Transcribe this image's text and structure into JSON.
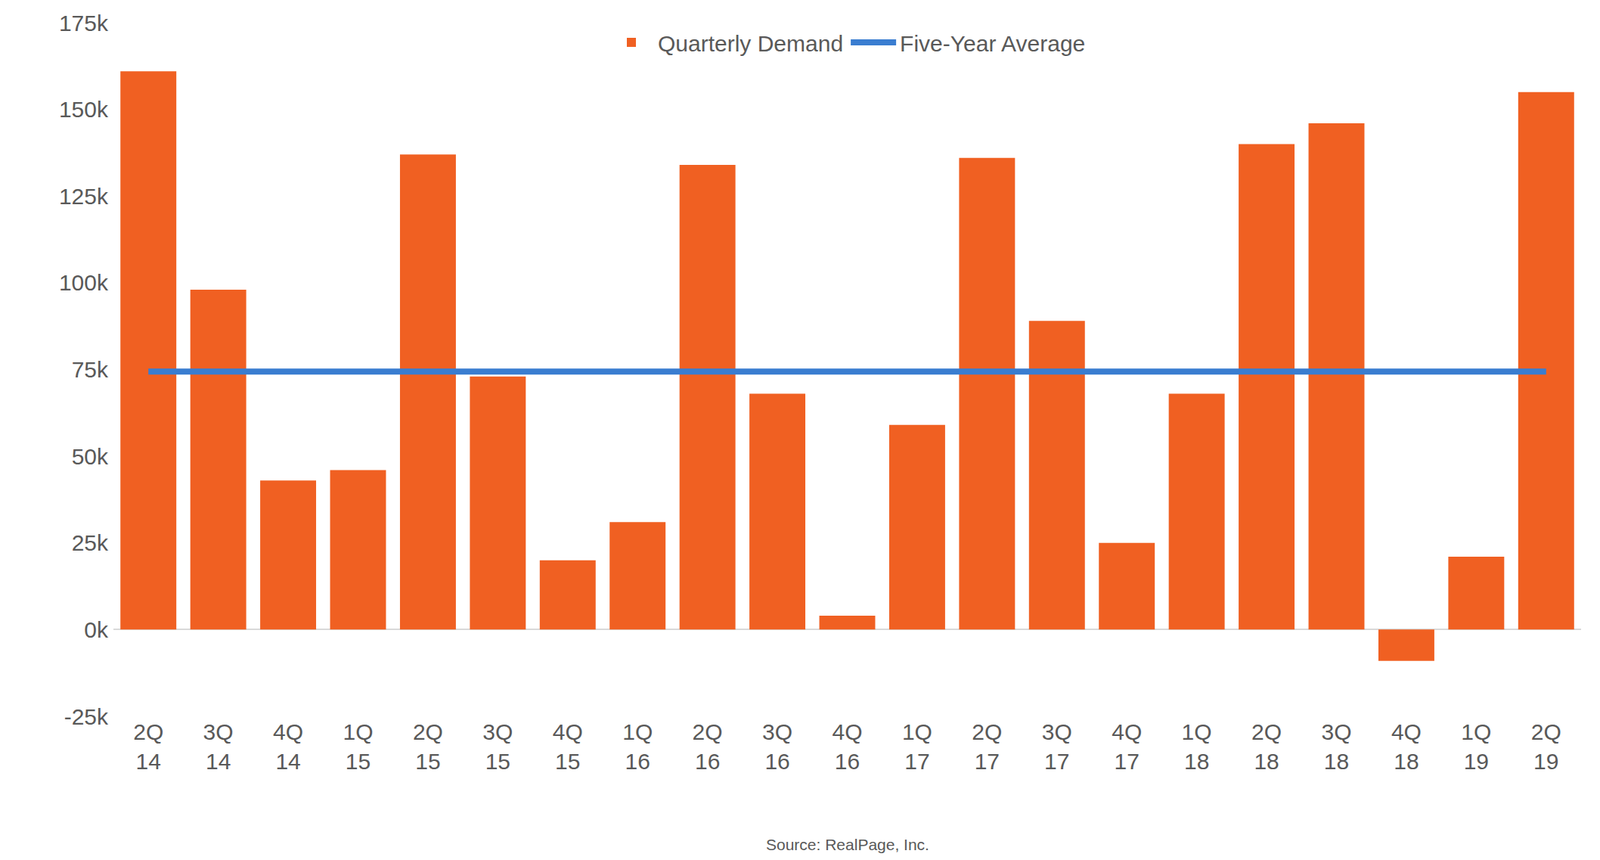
{
  "chart_data": {
    "type": "bar",
    "categories": [
      "2Q\n14",
      "3Q\n14",
      "4Q\n14",
      "1Q\n15",
      "2Q\n15",
      "3Q\n15",
      "4Q\n15",
      "1Q\n16",
      "2Q\n16",
      "3Q\n16",
      "4Q\n16",
      "1Q\n17",
      "2Q\n17",
      "3Q\n17",
      "4Q\n17",
      "1Q\n18",
      "2Q\n18",
      "3Q\n18",
      "4Q\n18",
      "1Q\n19",
      "2Q\n19"
    ],
    "series": [
      {
        "name": "Quarterly Demand",
        "type": "bar",
        "color": "#f06022",
        "values": [
          161000,
          98000,
          43000,
          46000,
          137000,
          73000,
          20000,
          31000,
          134000,
          68000,
          4000,
          59000,
          136000,
          89000,
          25000,
          68000,
          140000,
          146000,
          -9000,
          21000,
          155000
        ]
      },
      {
        "name": "Five-Year Average",
        "type": "line",
        "color": "#3a7dd0",
        "values": [
          74400,
          74400,
          74400,
          74400,
          74400,
          74400,
          74400,
          74400,
          74400,
          74400,
          74400,
          74400,
          74400,
          74400,
          74400,
          74400,
          74400,
          74400,
          74400,
          74400,
          74400
        ]
      }
    ],
    "ylim": [
      -25000,
      175000
    ],
    "yticks": [
      {
        "value": -25000,
        "label": "-25k"
      },
      {
        "value": 0,
        "label": "0k"
      },
      {
        "value": 25000,
        "label": "25k"
      },
      {
        "value": 50000,
        "label": "50k"
      },
      {
        "value": 75000,
        "label": "75k"
      },
      {
        "value": 100000,
        "label": "100k"
      },
      {
        "value": 125000,
        "label": "125k"
      },
      {
        "value": 150000,
        "label": "150k"
      },
      {
        "value": 175000,
        "label": "175k"
      }
    ],
    "grid": false,
    "legend": "top",
    "annotations": [
      "Source: RealPage, Inc."
    ]
  }
}
